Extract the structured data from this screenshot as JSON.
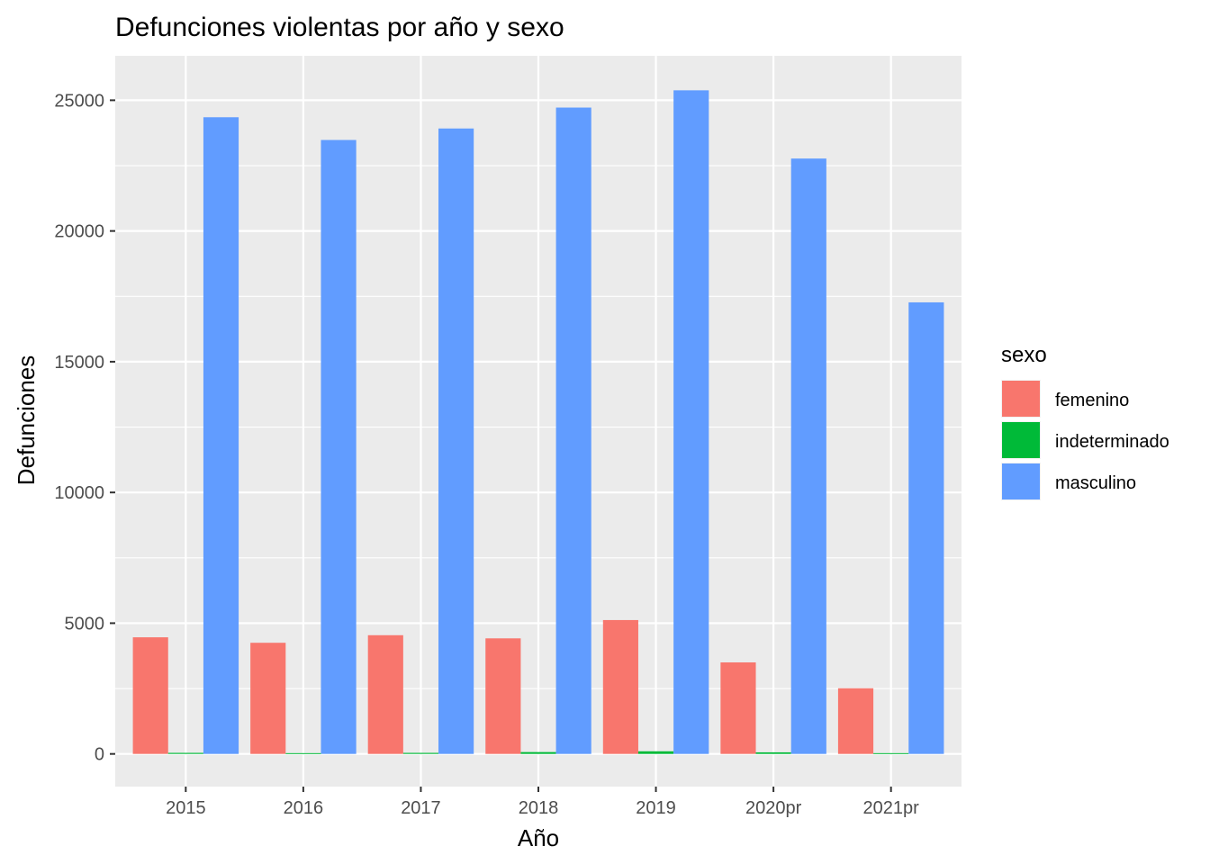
{
  "chart_data": {
    "type": "bar",
    "title": "Defunciones violentas por año y sexo",
    "xlabel": "Año",
    "ylabel": "Defunciones",
    "categories": [
      "2015",
      "2016",
      "2017",
      "2018",
      "2019",
      "2020pr",
      "2021pr"
    ],
    "series": [
      {
        "name": "femenino",
        "color": "#F8766D",
        "values": [
          4460,
          4250,
          4540,
          4420,
          5120,
          3500,
          2510
        ]
      },
      {
        "name": "indeterminado",
        "color": "#00BA38",
        "values": [
          40,
          30,
          40,
          70,
          100,
          60,
          30
        ]
      },
      {
        "name": "masculino",
        "color": "#619CFF",
        "values": [
          24350,
          23480,
          23920,
          24720,
          25380,
          22770,
          17270
        ]
      }
    ],
    "ylim": [
      -1250,
      26700
    ],
    "yticks": [
      0,
      5000,
      10000,
      15000,
      20000,
      25000
    ],
    "ytick_labels": [
      "0",
      "5000",
      "10000",
      "15000",
      "20000",
      "25000"
    ],
    "grid": true,
    "legend": {
      "title": "sexo",
      "position": "right"
    },
    "background": "#EBEBEB"
  }
}
